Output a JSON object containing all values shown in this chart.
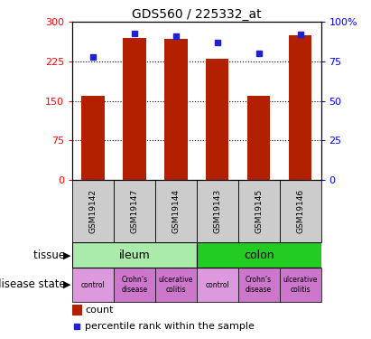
{
  "title": "GDS560 / 225332_at",
  "samples": [
    "GSM19142",
    "GSM19147",
    "GSM19144",
    "GSM19143",
    "GSM19145",
    "GSM19146"
  ],
  "counts": [
    160,
    270,
    268,
    230,
    160,
    274
  ],
  "percentile_ranks": [
    78,
    93,
    91,
    87,
    80,
    92
  ],
  "ylim_left": [
    0,
    300
  ],
  "ylim_right": [
    0,
    100
  ],
  "yticks_left": [
    0,
    75,
    150,
    225,
    300
  ],
  "yticklabels_left": [
    "0",
    "75",
    "150",
    "225",
    "300"
  ],
  "yticks_right": [
    0,
    25,
    50,
    75,
    100
  ],
  "yticklabels_right": [
    "0",
    "25",
    "50",
    "75",
    "100%"
  ],
  "bar_color": "#B22000",
  "dot_color": "#2222CC",
  "ileum_color": "#AAEAAA",
  "colon_color": "#22CC22",
  "disease_color_control": "#DD99DD",
  "disease_color_other": "#CC77CC",
  "sample_bg_color": "#CCCCCC",
  "tissue_label": "tissue",
  "disease_label": "disease state",
  "ileum_label": "ileum",
  "colon_label": "colon",
  "disease_labels": [
    "control",
    "Crohn’s\ndisease",
    "ulcerative\ncolitis",
    "control",
    "Crohn’s\ndisease",
    "ulcerative\ncolitis"
  ],
  "legend_count_label": "count",
  "legend_pct_label": "percentile rank within the sample"
}
